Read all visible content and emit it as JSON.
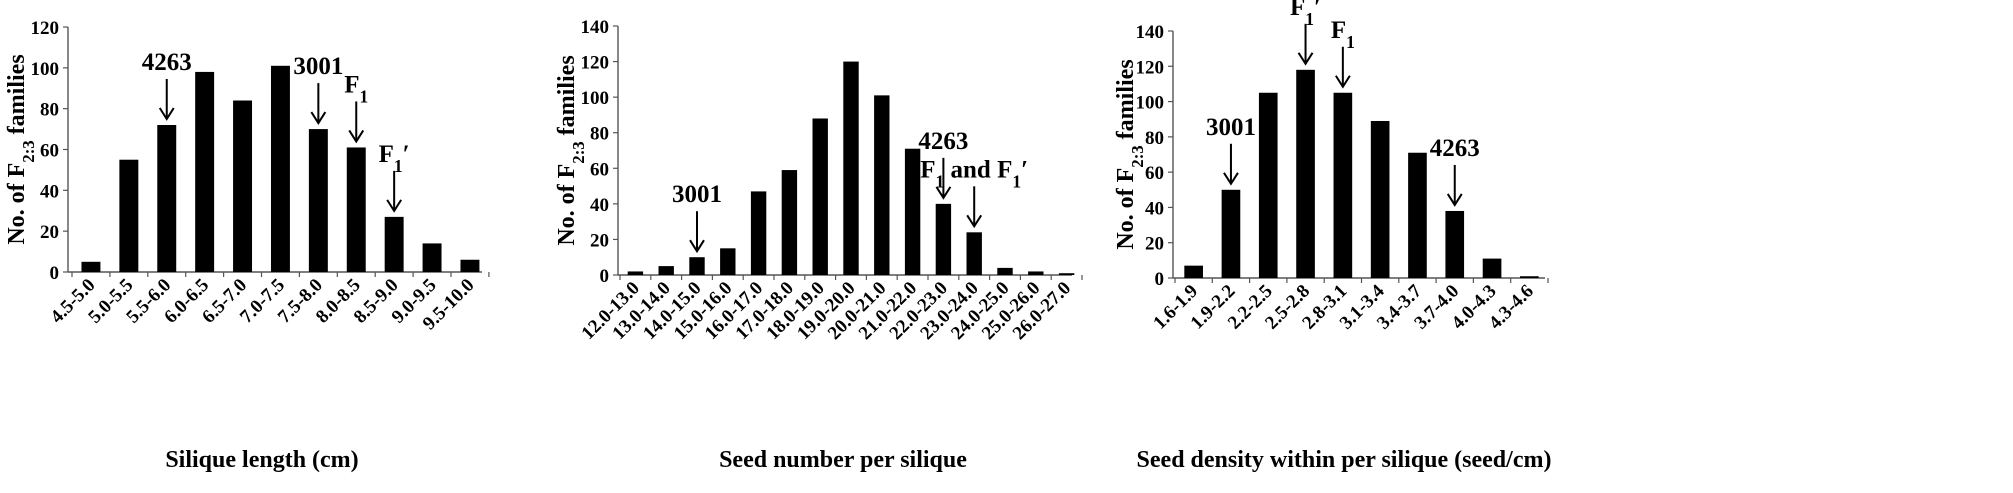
{
  "chart_data": [
    {
      "type": "bar",
      "xlabel": "Silique length (cm)",
      "ylabel_parts": [
        "No. of F",
        "2:3",
        " families"
      ],
      "ylim": [
        0,
        120
      ],
      "yticks": [
        0,
        20,
        40,
        60,
        80,
        100,
        120
      ],
      "categories": [
        "4.5-5.0",
        "5.0-5.5",
        "5.5-6.0",
        "6.0-6.5",
        "6.5-7.0",
        "7.0-7.5",
        "7.5-8.0",
        "8.0-8.5",
        "8.5-9.0",
        "9.0-9.5",
        "9.5-10.0"
      ],
      "values": [
        5,
        55,
        72,
        98,
        84,
        101,
        70,
        61,
        27,
        14,
        6
      ],
      "annotations": [
        {
          "label": "4263",
          "sub": "",
          "sup": "",
          "category": "5.5-6.0"
        },
        {
          "label": "3001",
          "sub": "",
          "sup": "",
          "category": "7.5-8.0"
        },
        {
          "label": "F",
          "sub": "1",
          "sup": "",
          "category": "8.0-8.5"
        },
        {
          "label": "F",
          "sub": "1",
          "sup": "′",
          "category": "8.5-9.0"
        }
      ],
      "grid": false,
      "bar_color": "#000000"
    },
    {
      "type": "bar",
      "xlabel": "Seed number per silique",
      "ylabel_parts": [
        "No. of F",
        "2:3",
        " families"
      ],
      "ylim": [
        0,
        140
      ],
      "yticks": [
        0,
        20,
        40,
        60,
        80,
        100,
        120,
        140
      ],
      "categories": [
        "12.0-13.0",
        "13.0-14.0",
        "14.0-15.0",
        "15.0-16.0",
        "16.0-17.0",
        "17.0-18.0",
        "18.0-19.0",
        "19.0-20.0",
        "20.0-21.0",
        "21.0-22.0",
        "22.0-23.0",
        "23.0-24.0",
        "24.0-25.0",
        "25.0-26.0",
        "26.0-27.0"
      ],
      "values": [
        2,
        5,
        10,
        15,
        47,
        59,
        88,
        120,
        101,
        71,
        40,
        24,
        4,
        2,
        1
      ],
      "annotations": [
        {
          "label": "3001",
          "sub": "",
          "sup": "",
          "category": "14.0-15.0"
        },
        {
          "label": "4263",
          "sub": "",
          "sup": "",
          "category": "22.0-23.0"
        },
        {
          "label": "F",
          "sub": "1",
          "sup": "",
          "tail": " and F",
          "tailsub": "1",
          "tailsup": "′",
          "category": "23.0-24.0"
        }
      ],
      "grid": false,
      "bar_color": "#000000"
    },
    {
      "type": "bar",
      "xlabel": "Seed density within per silique (seed/cm)",
      "ylabel_parts": [
        "No. of F",
        "2:3",
        " families"
      ],
      "ylim": [
        0,
        140
      ],
      "yticks": [
        0,
        20,
        40,
        60,
        80,
        100,
        120,
        140
      ],
      "categories": [
        "1.6-1.9",
        "1.9-2.2",
        "2.2-2.5",
        "2.5-2.8",
        "2.8-3.1",
        "3.1-3.4",
        "3.4-3.7",
        "3.7-4.0",
        "4.0-4.3",
        "4.3-4.6"
      ],
      "values": [
        7,
        50,
        105,
        118,
        105,
        89,
        71,
        38,
        11,
        1
      ],
      "annotations": [
        {
          "label": "3001",
          "sub": "",
          "sup": "",
          "category": "1.9-2.2"
        },
        {
          "label": "F",
          "sub": "1",
          "sup": "′",
          "category": "2.5-2.8"
        },
        {
          "label": "F",
          "sub": "1",
          "sup": "",
          "category": "2.8-3.1"
        },
        {
          "label": "4263",
          "sub": "",
          "sup": "",
          "category": "3.7-4.0"
        }
      ],
      "grid": false,
      "bar_color": "#000000"
    }
  ]
}
